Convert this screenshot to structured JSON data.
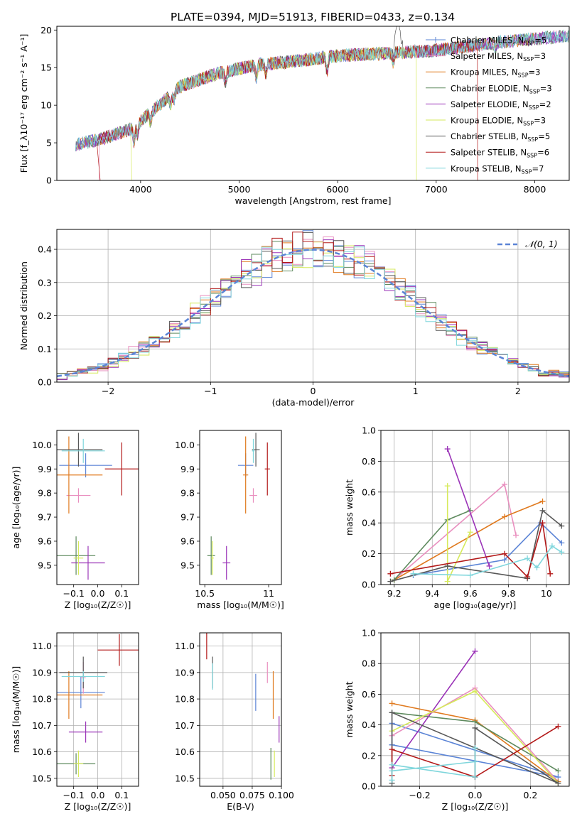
{
  "figure_title": "PLATE=0394, MJD=51913, FIBERID=0433, z=0.134",
  "model_colors": [
    "#5b84d6",
    "#e98fbf",
    "#e07a1f",
    "#5e8a5e",
    "#9b34b8",
    "#d6ea5b",
    "#585858",
    "#b31919",
    "#7fd6dc"
  ],
  "chart_data": [
    {
      "type": "line",
      "xlabel": "wavelength [Angstrom, rest frame]",
      "ylabel": "Flux [f_λ10⁻¹⁷ erg cm⁻² s⁻¹ A⁻¹]",
      "xlim": [
        3150,
        8350
      ],
      "ylim": [
        0,
        20.5
      ],
      "xticks": [
        4000,
        5000,
        6000,
        7000,
        8000
      ],
      "yticks": [
        0,
        5,
        10,
        15,
        20
      ],
      "legend": "top-right",
      "series": [
        {
          "name": "Chabrier MILES, N_SSP=5",
          "marker": "+"
        },
        {
          "name": "Salpeter MILES, N_SSP=3"
        },
        {
          "name": "Kroupa MILES, N_SSP=3"
        },
        {
          "name": "Chabrier ELODIE, N_SSP=3"
        },
        {
          "name": "Salpeter ELODIE, N_SSP=2"
        },
        {
          "name": "Kroupa ELODIE, N_SSP=3"
        },
        {
          "name": "Chabrier STELIB, N_SSP=5"
        },
        {
          "name": "Salpeter STELIB, N_SSP=6"
        },
        {
          "name": "Kroupa STELIB, N_SSP=7"
        }
      ],
      "continuum": {
        "x": [
          3350,
          3600,
          3900,
          4100,
          4400,
          4800,
          5200,
          5600,
          6000,
          6500,
          7000,
          7400,
          7800,
          8300
        ],
        "y": [
          4.8,
          5.5,
          6.8,
          9.0,
          12.5,
          14.3,
          15.4,
          15.9,
          16.6,
          16.9,
          17.3,
          18.0,
          18.6,
          19.2
        ]
      }
    },
    {
      "type": "line",
      "xlabel": "(data-model)/error",
      "ylabel": "Normed distribution",
      "xlim": [
        -2.5,
        2.5
      ],
      "ylim": [
        0,
        0.46
      ],
      "xticks": [
        -2,
        -1,
        0,
        1,
        2
      ],
      "yticks": [
        0.0,
        0.1,
        0.2,
        0.3,
        0.4
      ],
      "legend": "top-right",
      "gaussian_label": "𝒩(0, 1)",
      "bins": {
        "start": -2.5,
        "width": 0.1,
        "count": 50
      }
    },
    {
      "type": "scatter",
      "xlabel": "Z [log₁₀(Z/Z☉)]",
      "ylabel": "age  [log₁₀(age/yr)]",
      "xlim": [
        -0.17,
        0.17
      ],
      "ylim": [
        9.42,
        10.06
      ],
      "xticks": [
        -0.1,
        0.0,
        0.1
      ],
      "yticks": [
        9.5,
        9.6,
        9.7,
        9.8,
        9.9,
        10.0
      ],
      "points": [
        {
          "x": -0.05,
          "y": 9.915,
          "xerr": 0.11,
          "yerr": 0.05
        },
        {
          "x": -0.08,
          "y": 9.79,
          "xerr": 0.05,
          "yerr": 0.03
        },
        {
          "x": -0.12,
          "y": 9.875,
          "xerr": 0.14,
          "yerr": 0.16
        },
        {
          "x": -0.09,
          "y": 9.54,
          "xerr": 0.08,
          "yerr": 0.08
        },
        {
          "x": -0.04,
          "y": 9.51,
          "xerr": 0.07,
          "yerr": 0.07
        },
        {
          "x": -0.08,
          "y": 9.53,
          "xerr": 0.02,
          "yerr": 0.07
        },
        {
          "x": -0.08,
          "y": 9.98,
          "xerr": 0.1,
          "yerr": 0.07
        },
        {
          "x": 0.1,
          "y": 9.9,
          "xerr": 0.07,
          "yerr": 0.11
        },
        {
          "x": -0.06,
          "y": 9.975,
          "xerr": 0.09,
          "yerr": 0.05
        }
      ]
    },
    {
      "type": "scatter",
      "xlabel": "mass [log₁₀(M/M☉)]",
      "xlim": [
        10.46,
        11.1
      ],
      "ylim": [
        9.42,
        10.06
      ],
      "xticks": [
        10.5,
        11.0
      ],
      "yticks": [
        9.5,
        9.6,
        9.7,
        9.8,
        9.9,
        10.0
      ],
      "points": [
        {
          "x": 10.82,
          "y": 9.915,
          "xerr": 0.06,
          "yerr": 0.05
        },
        {
          "x": 10.88,
          "y": 9.79,
          "xerr": 0.03,
          "yerr": 0.03
        },
        {
          "x": 10.82,
          "y": 9.875,
          "xerr": 0.02,
          "yerr": 0.16
        },
        {
          "x": 10.55,
          "y": 9.54,
          "xerr": 0.03,
          "yerr": 0.08
        },
        {
          "x": 10.67,
          "y": 9.51,
          "xerr": 0.03,
          "yerr": 0.07
        },
        {
          "x": 10.56,
          "y": 9.53,
          "xerr": 0.01,
          "yerr": 0.07
        },
        {
          "x": 10.9,
          "y": 9.98,
          "xerr": 0.03,
          "yerr": 0.07
        },
        {
          "x": 10.99,
          "y": 9.9,
          "xerr": 0.02,
          "yerr": 0.11
        },
        {
          "x": 10.88,
          "y": 9.975,
          "xerr": 0.01,
          "yerr": 0.05
        }
      ]
    },
    {
      "type": "line",
      "xlabel": "age  [log₁₀(age/yr)]",
      "ylabel": "mass weight",
      "xlim": [
        9.13,
        10.12
      ],
      "ylim": [
        0,
        1.0
      ],
      "xticks": [
        9.2,
        9.4,
        9.6,
        9.8,
        10.0
      ],
      "yticks": [
        0.0,
        0.2,
        0.4,
        0.6,
        0.8,
        1.0
      ],
      "series": [
        {
          "x": [
            9.3,
            9.78,
            9.97,
            10.08
          ],
          "y": [
            0.06,
            0.16,
            0.4,
            0.27
          ]
        },
        {
          "x": [
            9.2,
            9.78,
            9.84
          ],
          "y": [
            0.03,
            0.65,
            0.32
          ]
        },
        {
          "x": [
            9.2,
            9.78,
            9.98
          ],
          "y": [
            0.03,
            0.44,
            0.54
          ]
        },
        {
          "x": [
            9.2,
            9.48,
            9.6
          ],
          "y": [
            0.03,
            0.42,
            0.48
          ]
        },
        {
          "x": [
            9.48,
            9.7
          ],
          "y": [
            0.88,
            0.12
          ]
        },
        {
          "x": [
            9.48,
            9.48,
            9.6
          ],
          "y": [
            0.64,
            0.02,
            0.34
          ]
        },
        {
          "x": [
            9.18,
            9.48,
            9.9,
            9.98,
            10.08
          ],
          "y": [
            0.02,
            0.12,
            0.04,
            0.48,
            0.38
          ]
        },
        {
          "x": [
            9.18,
            9.78,
            9.9,
            9.98,
            10.02
          ],
          "y": [
            0.07,
            0.2,
            0.05,
            0.4,
            0.07
          ]
        },
        {
          "x": [
            9.3,
            9.6,
            9.9,
            9.95,
            10.03,
            10.08
          ],
          "y": [
            0.07,
            0.06,
            0.17,
            0.11,
            0.25,
            0.21
          ]
        }
      ]
    },
    {
      "type": "scatter",
      "xlabel": "Z [log₁₀(Z/Z☉)]",
      "ylabel": "mass [log₁₀(M/M☉)]",
      "xlim": [
        -0.17,
        0.17
      ],
      "ylim": [
        10.47,
        11.05
      ],
      "xticks": [
        -0.1,
        0.0,
        0.1
      ],
      "yticks": [
        10.5,
        10.6,
        10.7,
        10.8,
        10.9,
        11.0
      ],
      "points": [
        {
          "x": -0.07,
          "y": 10.825,
          "xerr": 0.1,
          "yerr": 0.06
        },
        {
          "x": -0.06,
          "y": 10.88,
          "xerr": 0.01,
          "yerr": 0.06
        },
        {
          "x": -0.12,
          "y": 10.815,
          "xerr": 0.14,
          "yerr": 0.09
        },
        {
          "x": -0.09,
          "y": 10.555,
          "xerr": 0.08,
          "yerr": 0.04
        },
        {
          "x": -0.05,
          "y": 10.675,
          "xerr": 0.07,
          "yerr": 0.04
        },
        {
          "x": -0.08,
          "y": 10.555,
          "xerr": 0.02,
          "yerr": 0.05
        },
        {
          "x": -0.06,
          "y": 10.9,
          "xerr": 0.1,
          "yerr": 0.06
        },
        {
          "x": 0.09,
          "y": 10.985,
          "xerr": 0.09,
          "yerr": 0.06
        },
        {
          "x": -0.06,
          "y": 10.885,
          "xerr": 0.09,
          "yerr": 0.02
        }
      ]
    },
    {
      "type": "scatter",
      "xlabel": "E(B-V)",
      "xlim": [
        0.03,
        0.1
      ],
      "ylim": [
        10.47,
        11.05
      ],
      "xticks": [
        0.05,
        0.075,
        0.1
      ],
      "xticklabels": [
        "0.050",
        "0.075",
        "0.100"
      ],
      "yticks": [
        10.5,
        10.6,
        10.7,
        10.8,
        10.9,
        11.0
      ],
      "points": [
        {
          "x": 0.078,
          "y": 10.825,
          "yerr": 0.07
        },
        {
          "x": 0.088,
          "y": 10.9,
          "yerr": 0.04
        },
        {
          "x": 0.093,
          "y": 10.815,
          "yerr": 0.09
        },
        {
          "x": 0.091,
          "y": 10.555,
          "yerr": 0.06
        },
        {
          "x": 0.098,
          "y": 10.685,
          "yerr": 0.05
        },
        {
          "x": 0.094,
          "y": 10.555,
          "yerr": 0.05
        },
        {
          "x": 0.041,
          "y": 10.9,
          "yerr": 0.06
        },
        {
          "x": 0.036,
          "y": 11.0,
          "yerr": 0.05
        },
        {
          "x": 0.041,
          "y": 10.885,
          "yerr": 0.05
        }
      ]
    },
    {
      "type": "line",
      "xlabel": "Z [log₁₀(Z/Z☉)]",
      "ylabel": "mass weight",
      "xlim": [
        -0.34,
        0.34
      ],
      "ylim": [
        0,
        1.0
      ],
      "xticks": [
        -0.2,
        0.0,
        0.2
      ],
      "yticks": [
        0.0,
        0.2,
        0.4,
        0.6,
        0.8,
        1.0
      ],
      "series": [
        {
          "x": [
            -0.3,
            0.3,
            -0.3,
            -0.3
          ],
          "y": [
            0.27,
            0.06,
            0.41,
            0.27
          ]
        },
        {
          "x": [
            -0.3,
            0.0,
            0.3
          ],
          "y": [
            0.33,
            0.64,
            0.03
          ]
        },
        {
          "x": [
            -0.3,
            0.0,
            0.3
          ],
          "y": [
            0.54,
            0.43,
            0.03
          ]
        },
        {
          "x": [
            -0.3,
            0.0,
            0.3
          ],
          "y": [
            0.48,
            0.42,
            0.1
          ]
        },
        {
          "x": [
            -0.3,
            0.0
          ],
          "y": [
            0.12,
            0.88
          ]
        },
        {
          "x": [
            -0.3,
            0.0,
            0.3
          ],
          "y": [
            0.36,
            0.62,
            0.02
          ]
        },
        {
          "x": [
            -0.3,
            -0.3,
            0.3,
            0.0,
            0.0
          ],
          "y": [
            0.02,
            0.48,
            0.02,
            0.38,
            0.06
          ]
        },
        {
          "x": [
            -0.3,
            -0.3,
            0.0,
            0.3
          ],
          "y": [
            0.07,
            0.24,
            0.06,
            0.39
          ]
        },
        {
          "x": [
            -0.3,
            0.0,
            0.0,
            0.0,
            -0.3,
            -0.3
          ],
          "y": [
            0.14,
            0.06,
            0.25,
            0.16,
            0.1,
            0.04
          ]
        }
      ]
    }
  ]
}
